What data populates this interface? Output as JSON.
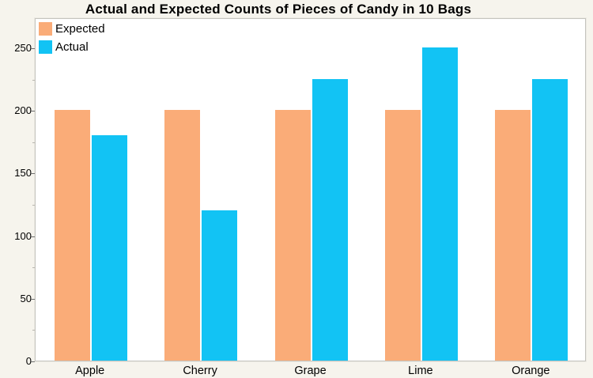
{
  "chart_data": {
    "type": "bar",
    "title": "Actual and Expected Counts of Pieces of Candy in 10 Bags",
    "xlabel": "",
    "ylabel": "",
    "categories": [
      "Apple",
      "Cherry",
      "Grape",
      "Lime",
      "Orange"
    ],
    "series": [
      {
        "name": "Expected",
        "color": "#faac78",
        "values": [
          200,
          200,
          200,
          200,
          200
        ]
      },
      {
        "name": "Actual",
        "color": "#12c3f4",
        "values": [
          180,
          120,
          225,
          250,
          225
        ]
      }
    ],
    "ylim": [
      0,
      274
    ],
    "yticks": [
      0,
      50,
      100,
      150,
      200,
      250
    ],
    "minor_ytick_interval": 25,
    "grid": false,
    "legend_position": "top-left"
  },
  "colors": {
    "page_background": "#f6f4ed",
    "plot_background": "#ffffff",
    "plot_border": "#c5c4be",
    "expected_bar": "#faac78",
    "actual_bar": "#12c3f4",
    "text": "#000000"
  }
}
